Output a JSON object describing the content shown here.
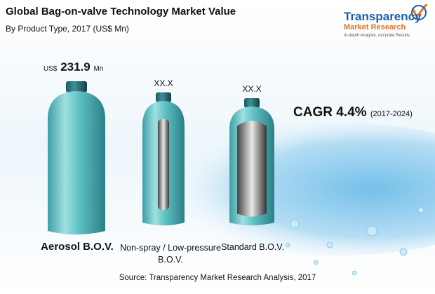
{
  "header": {
    "title": "Global Bag-on-valve Technology Market Value",
    "subtitle": "By Product Type, 2017 (US$ Mn)"
  },
  "logo": {
    "name_1": "Transparency",
    "name_2": "Market Research",
    "tagline": "In-depth Analysis. Accurate Results"
  },
  "products": [
    {
      "label": "Aerosol B.O.V.",
      "value_prefix": "US$",
      "value": 231.9,
      "value_unit": "Mn"
    },
    {
      "label": "Non-spray / Low-pressure B.O.V.",
      "value": "XX.X"
    },
    {
      "label": "Standard B.O.V.",
      "value": "XX.X"
    }
  ],
  "cagr": {
    "label": "CAGR 4.4%",
    "period": "(2017-2024)"
  },
  "source": "Source: Transparency Market Research Analysis, 2017"
}
